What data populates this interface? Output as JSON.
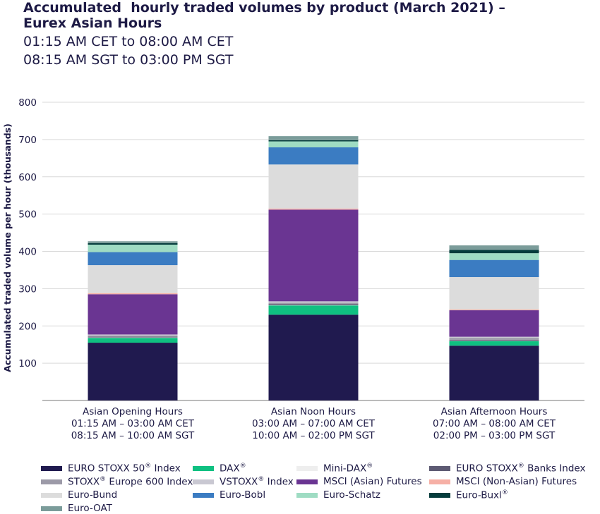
{
  "title_line1": "Accumulated  hourly traded volumes by product (March 2021) –",
  "title_line2": "Eurex Asian Hours",
  "subtitle_line1": "01:15 AM CET to 08:00 AM CET",
  "subtitle_line2": "08:15 AM SGT to 03:00 PM SGT",
  "chart_data": {
    "type": "bar",
    "stacked": true,
    "ylabel": "Accumulated traded volume per hour (thousands)",
    "xlabel": "",
    "ylim": [
      0,
      800
    ],
    "yticks": [
      100,
      200,
      300,
      400,
      500,
      600,
      700,
      800
    ],
    "grid": true,
    "legend_position": "bottom",
    "categories": [
      [
        "Asian Opening Hours",
        "01:15 AM – 03:00 AM CET",
        "08:15 AM – 10:00 AM SGT"
      ],
      [
        "Asian Noon Hours",
        "03:00 AM – 07:00 AM CET",
        "10:00 AM – 02:00 PM SGT"
      ],
      [
        "Asian Afternoon Hours",
        "07:00 AM – 08:00 AM CET",
        "02:00 PM – 03:00 PM SGT"
      ]
    ],
    "series": [
      {
        "name": "EURO STOXX 50® Index",
        "color": "#201a4f",
        "values": [
          155,
          230,
          147
        ]
      },
      {
        "name": "DAX®",
        "color": "#0fc081",
        "values": [
          13,
          25,
          12
        ]
      },
      {
        "name": "Mini-DAX®",
        "color": "#eeeeee",
        "values": [
          1,
          1,
          1
        ]
      },
      {
        "name": "EURO STOXX® Banks Index",
        "color": "#5d5a73",
        "values": [
          2,
          3,
          3
        ]
      },
      {
        "name": "STOXX® Europe 600 Index",
        "color": "#9c9aa8",
        "values": [
          3,
          3,
          5
        ]
      },
      {
        "name": "VSTOXX® Index",
        "color": "#c9c8d2",
        "values": [
          3,
          4,
          3
        ]
      },
      {
        "name": "MSCI (Asian) Futures",
        "color": "#6a3592",
        "values": [
          108,
          246,
          71
        ]
      },
      {
        "name": "MSCI (Non-Asian) Futures",
        "color": "#f6b0a6",
        "values": [
          3,
          3,
          2
        ]
      },
      {
        "name": "Euro-Bund",
        "color": "#dcdcdc",
        "values": [
          75,
          118,
          87
        ]
      },
      {
        "name": "Euro-Bobl",
        "color": "#3b7cc2",
        "values": [
          35,
          46,
          46
        ]
      },
      {
        "name": "Euro-Schatz",
        "color": "#9fdcc3",
        "values": [
          20,
          16,
          18
        ]
      },
      {
        "name": "Euro-Buxl®",
        "color": "#053c3c",
        "values": [
          4,
          3,
          9
        ]
      },
      {
        "name": "Euro-OAT",
        "color": "#7b9c9a",
        "values": [
          5,
          11,
          12
        ]
      }
    ]
  }
}
